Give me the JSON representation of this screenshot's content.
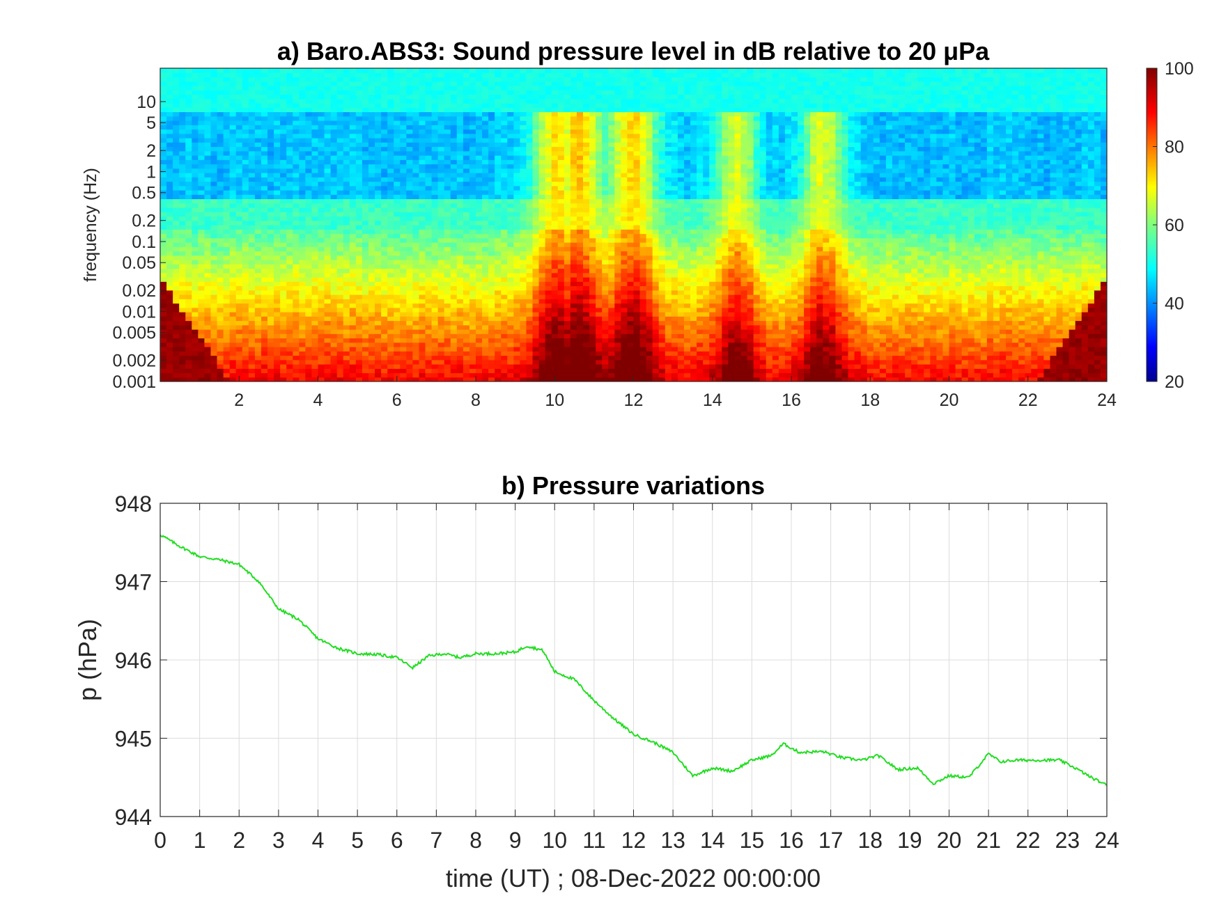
{
  "chart_data": [
    {
      "type": "heatmap",
      "title": "a) Baro.ABS3: Sound pressure level in dB relative to 20 μPa",
      "xlabel": "",
      "ylabel": "frequency (Hz)",
      "x_ticks": [
        "2",
        "4",
        "6",
        "8",
        "10",
        "12",
        "14",
        "16",
        "18",
        "20",
        "22",
        "24"
      ],
      "y_ticks": [
        "10",
        "5",
        "2",
        "1",
        "0.5",
        "0.2",
        "0.1",
        "0.05",
        "0.02",
        "0.01",
        "0.005",
        "0.002",
        "0.001"
      ],
      "xlim": [
        0,
        24
      ],
      "ylim": [
        0.001,
        30
      ],
      "y_scale": "log",
      "colorbar": {
        "ticks": [
          "100",
          "80",
          "60",
          "40",
          "20"
        ],
        "range": [
          20,
          100
        ],
        "colormap": "jet"
      },
      "grid": false,
      "description_of_values": {
        "high_freq_band_db": 50,
        "mid_freq_band_db": 40,
        "low_freq_band_db": 85,
        "active_hours": [
          10,
          10.6,
          12,
          14.6,
          16.8
        ]
      }
    },
    {
      "type": "line",
      "title": "b) Pressure variations",
      "xlabel": "time (UT) ; 08-Dec-2022 00:00:00",
      "ylabel": "p (hPa)",
      "xlim": [
        0,
        24
      ],
      "ylim": [
        944,
        948
      ],
      "x_ticks": [
        "0",
        "1",
        "2",
        "3",
        "4",
        "5",
        "6",
        "7",
        "8",
        "9",
        "10",
        "11",
        "12",
        "13",
        "14",
        "15",
        "16",
        "17",
        "18",
        "19",
        "20",
        "21",
        "22",
        "23",
        "24"
      ],
      "y_ticks": [
        "948",
        "947",
        "946",
        "945",
        "944"
      ],
      "grid": true,
      "series": [
        {
          "color": "#22dd22",
          "x": [
            0,
            0.5,
            1,
            1.5,
            2,
            2.5,
            3,
            3.5,
            4,
            4.5,
            5,
            5.5,
            6,
            6.4,
            6.8,
            7.2,
            7.6,
            8,
            8.5,
            9,
            9.3,
            9.7,
            10,
            10.5,
            11,
            11.5,
            12,
            12.5,
            13,
            13.5,
            14,
            14.5,
            15,
            15.5,
            15.8,
            16.2,
            16.8,
            17.3,
            17.8,
            18.2,
            18.7,
            19.2,
            19.6,
            20,
            20.5,
            20.8,
            21,
            21.3,
            21.7,
            22.2,
            22.8,
            23.2,
            23.6,
            24
          ],
          "y": [
            947.6,
            947.45,
            947.32,
            947.28,
            947.22,
            947.0,
            946.65,
            946.52,
            946.27,
            946.15,
            946.08,
            946.07,
            946.03,
            945.9,
            946.05,
            946.08,
            946.03,
            946.08,
            946.08,
            946.1,
            946.18,
            946.12,
            945.85,
            945.75,
            945.48,
            945.25,
            945.05,
            944.95,
            944.82,
            944.52,
            944.62,
            944.58,
            944.72,
            944.78,
            944.93,
            944.82,
            944.83,
            944.75,
            944.72,
            944.78,
            944.6,
            944.62,
            944.42,
            944.52,
            944.5,
            944.68,
            944.8,
            944.7,
            944.72,
            944.72,
            944.72,
            944.62,
            944.5,
            944.4
          ]
        }
      ]
    }
  ]
}
